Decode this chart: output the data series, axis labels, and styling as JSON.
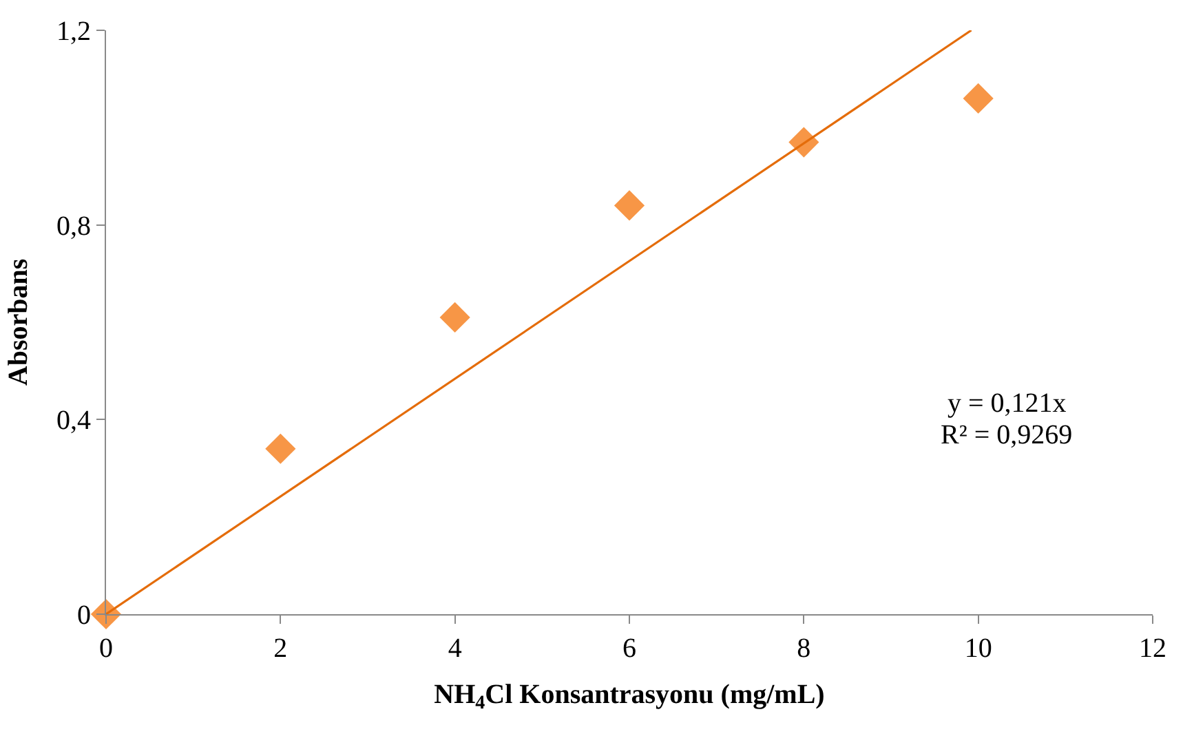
{
  "chart_data": {
    "type": "scatter",
    "xlabel": "NH$_{4}$Cl Konsantrasyonu (mg/mL)",
    "ylabel": "Absorbans",
    "series": [
      {
        "color": "#f79646",
        "marker": "diamond",
        "x": [
          0,
          2,
          4,
          6,
          8,
          10
        ],
        "values": [
          0,
          0.34,
          0.61,
          0.84,
          0.97,
          1.06
        ]
      },
      {
        "type": "line",
        "color": "#e46c0a",
        "marker": "none",
        "x": [
          0,
          9.92
        ],
        "values": [
          0,
          1.2
        ]
      }
    ],
    "xlim": [
      0,
      12
    ],
    "xticks": [
      0,
      2,
      4,
      6,
      8,
      10,
      12
    ],
    "ylim": [
      0,
      1.2
    ],
    "yticks": [
      0,
      {
        "value": 0.4,
        "label": "0,4"
      },
      {
        "value": 0.8,
        "label": "0,8"
      },
      {
        "value": 1.2,
        "label": "1,2"
      }
    ],
    "annotations": [
      "y = 0,121x",
      "R² = 0,9269"
    ]
  }
}
